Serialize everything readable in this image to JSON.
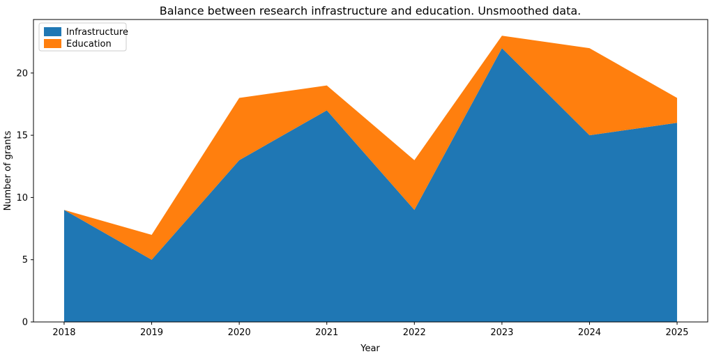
{
  "chart_data": {
    "type": "area",
    "stacked": true,
    "title": "Balance between research infrastructure and education. Unsmoothed data.",
    "xlabel": "Year",
    "ylabel": "Number of grants",
    "x": [
      2018,
      2019,
      2020,
      2021,
      2022,
      2023,
      2024,
      2025
    ],
    "series": [
      {
        "name": "Infrastructure",
        "values": [
          9,
          5,
          13,
          17,
          9,
          22,
          15,
          16
        ],
        "color": "#1f77b4"
      },
      {
        "name": "Education",
        "values": [
          0,
          2,
          5,
          2,
          4,
          1,
          7,
          2
        ],
        "color": "#ff7f0e"
      }
    ],
    "totals": [
      9,
      7,
      18,
      19,
      13,
      23,
      22,
      18
    ],
    "xticks": [
      "2018",
      "2019",
      "2020",
      "2021",
      "2022",
      "2023",
      "2024",
      "2025"
    ],
    "yticks": [
      0,
      5,
      10,
      15,
      20
    ],
    "xlim": [
      2017.65,
      2025.35
    ],
    "ylim": [
      0,
      24.3
    ],
    "grid": false,
    "legend_position": "upper left",
    "spine_color": "#000000",
    "background_color": "#ffffff"
  }
}
